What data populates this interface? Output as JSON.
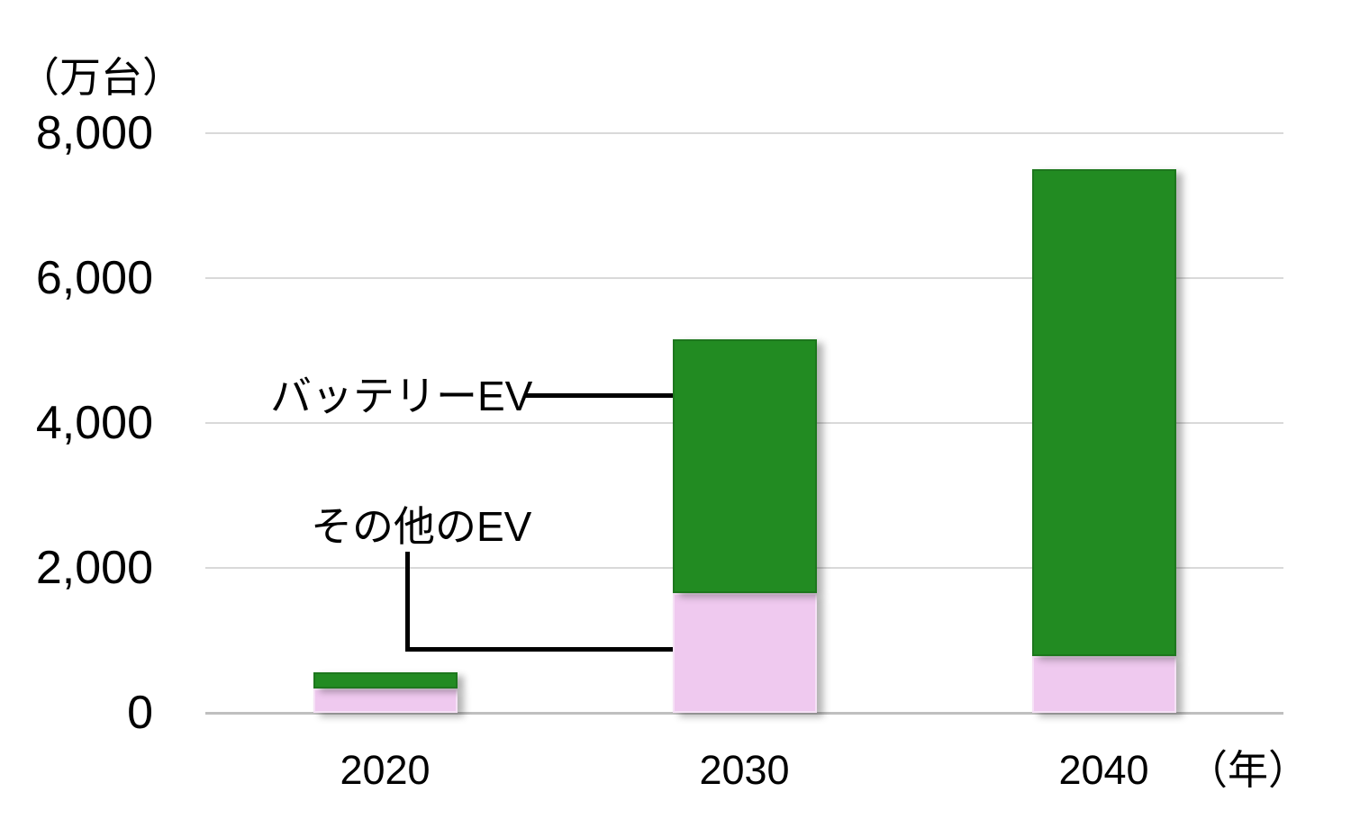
{
  "chart_data": {
    "type": "bar",
    "stacked": true,
    "title": "",
    "unit_label": "（万台）",
    "x_unit_label": "（年）",
    "categories": [
      "2020",
      "2030",
      "2040"
    ],
    "series": [
      {
        "name": "その他のEV",
        "color": "#EFC9EF",
        "values": [
          340,
          1650,
          780
        ]
      },
      {
        "name": "バッテリーEV",
        "color": "#228B22",
        "values": [
          220,
          3500,
          6720
        ]
      }
    ],
    "totals": [
      560,
      5150,
      7500
    ],
    "ylim": [
      0,
      8000
    ],
    "yticks": [
      0,
      2000,
      4000,
      6000,
      8000
    ],
    "ytick_labels": [
      "0",
      "2,000",
      "4,000",
      "6,000",
      "8,000"
    ],
    "grid": true,
    "legend_position": "callout-annotations",
    "annotations": [
      {
        "text": "バッテリーEV",
        "series": "バッテリーEV",
        "target_category": "2030"
      },
      {
        "text": "その他のEV",
        "series": "その他のEV",
        "target_category": "2030"
      }
    ]
  },
  "colors": {
    "background": "#FFFFFF",
    "grid": "#D9D9D9",
    "axis": "#BFBFBF",
    "text": "#000000",
    "callout_line": "#000000",
    "battery_ev": "#228B22",
    "other_ev": "#EFC9EF"
  }
}
